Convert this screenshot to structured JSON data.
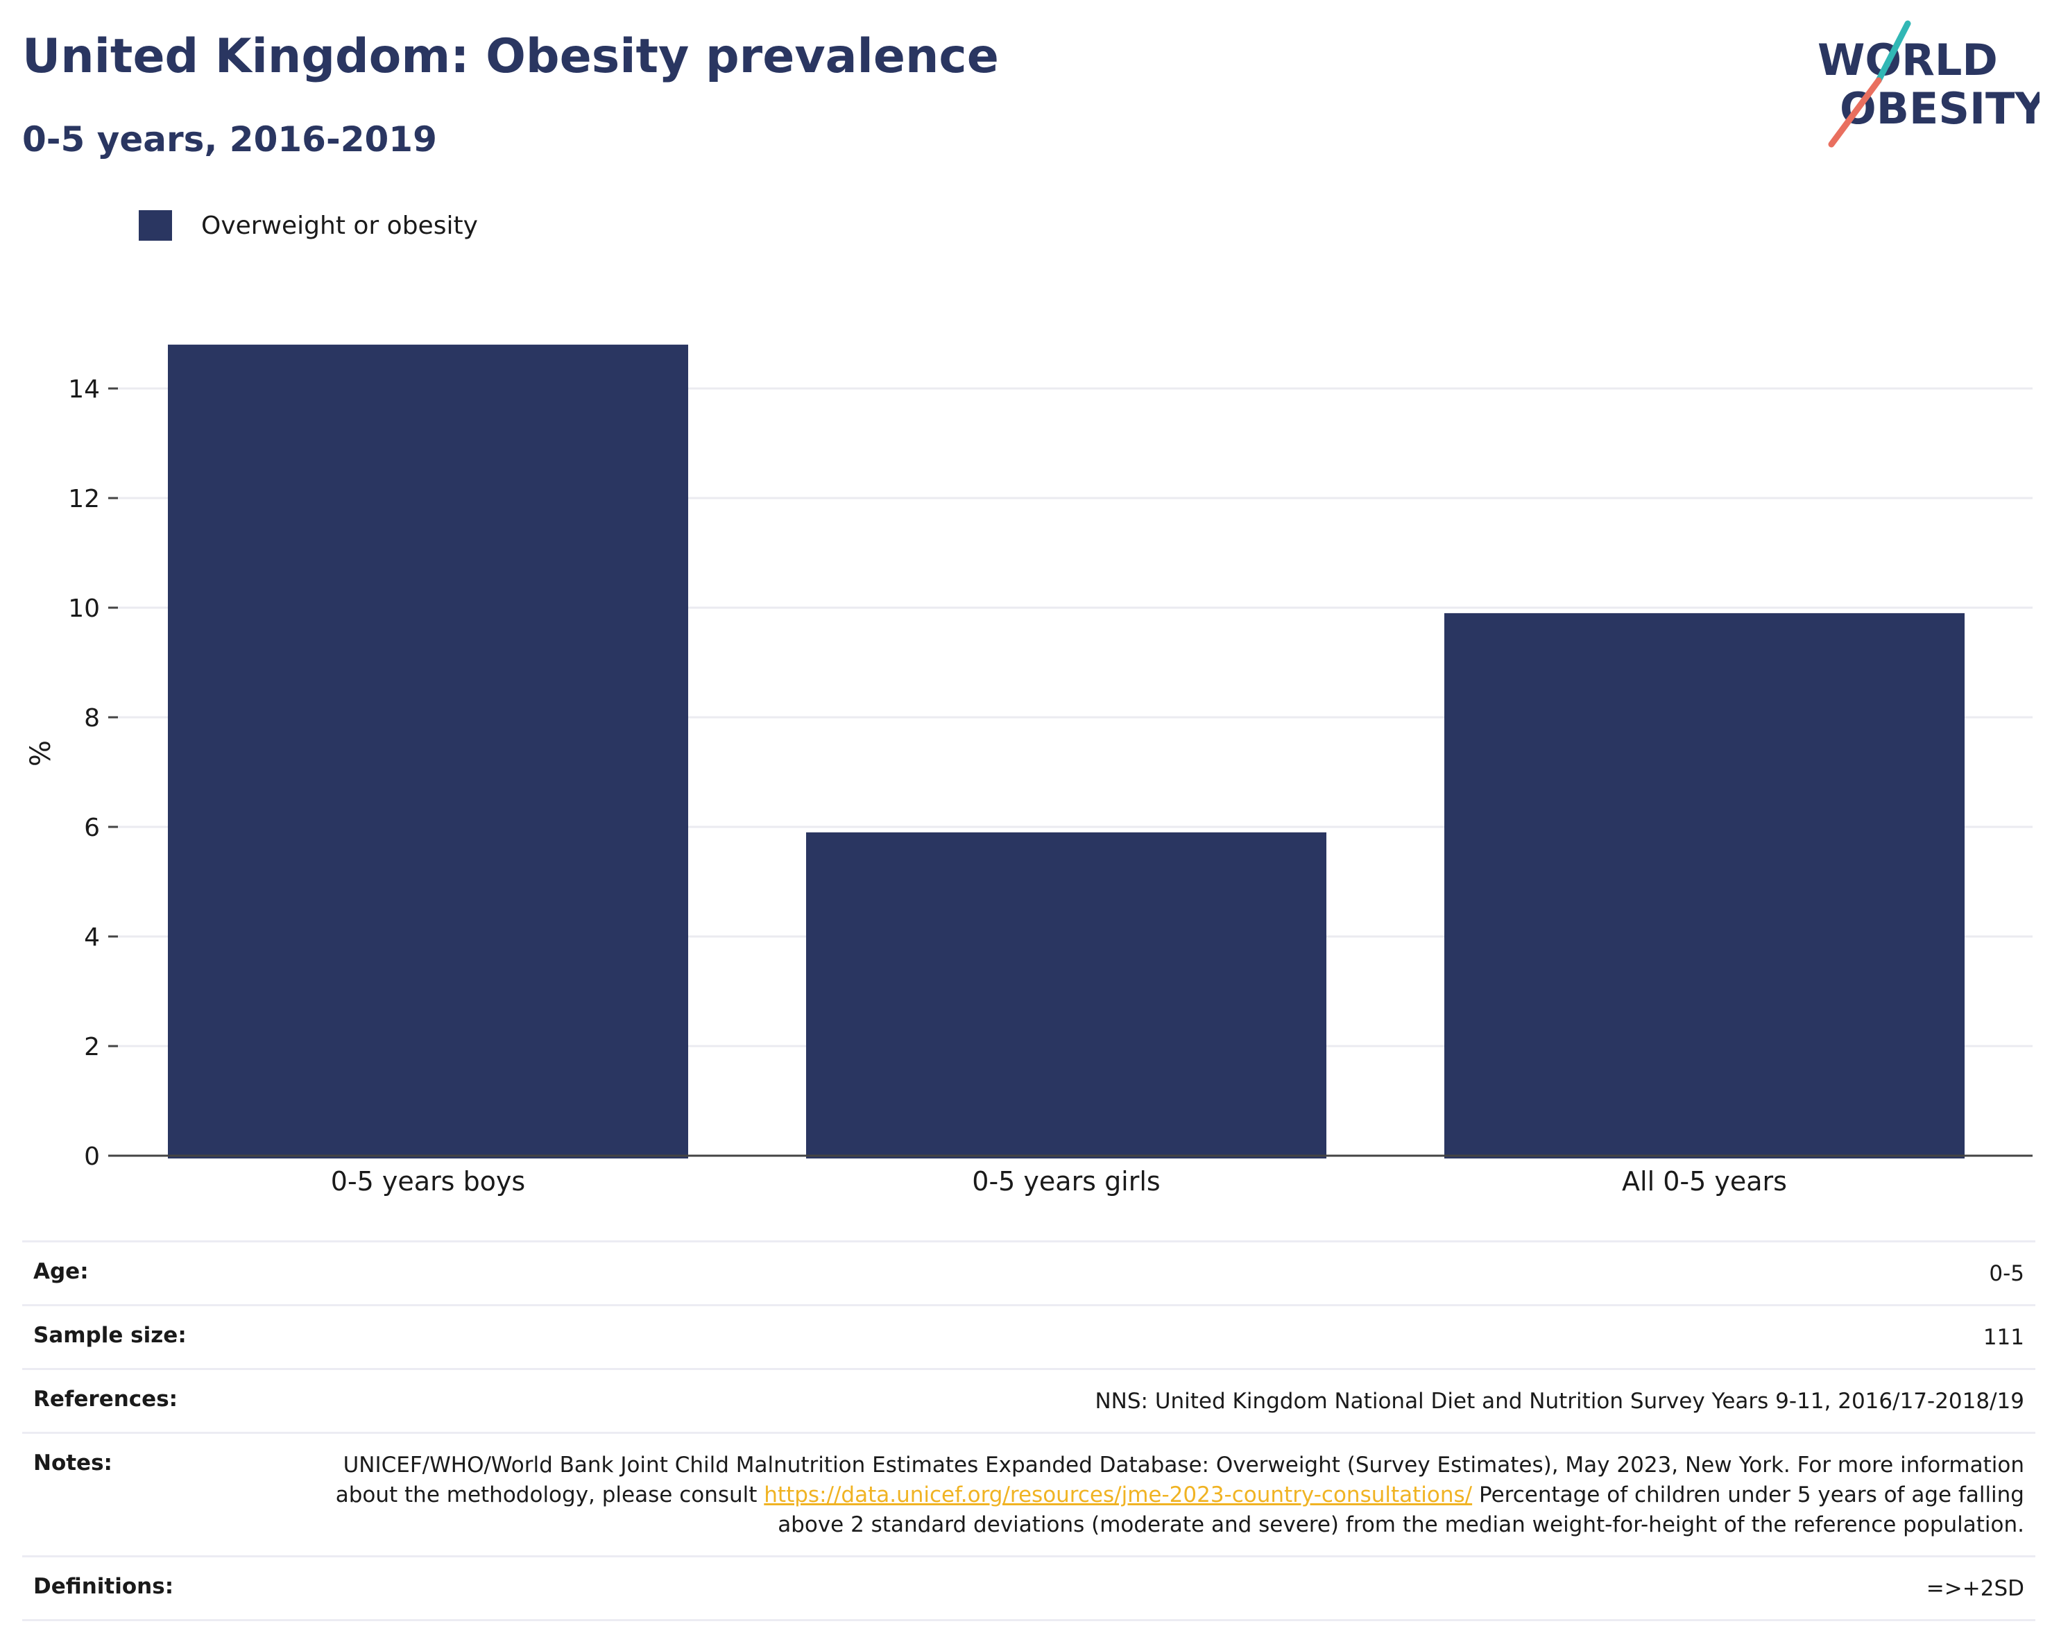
{
  "header": {
    "title": "United Kingdom: Obesity prevalence",
    "subtitle": "0-5 years, 2016-2019"
  },
  "logo": {
    "line1": "WORLD",
    "line2": "OBESITY",
    "text_color": "#2a3661",
    "slash_top_color": "#31b7b5",
    "slash_bottom_color": "#e96f5f"
  },
  "legend": {
    "label": "Overweight or obesity",
    "color": "#2a3661"
  },
  "chart_data": {
    "type": "bar",
    "title": "United Kingdom: Obesity prevalence",
    "subtitle": "0-5 years, 2016-2019",
    "categories": [
      "0-5 years boys",
      "0-5 years girls",
      "All 0-5 years"
    ],
    "series": [
      {
        "name": "Overweight or obesity",
        "values": [
          14.8,
          5.9,
          9.9
        ],
        "color": "#2a3661"
      }
    ],
    "xlabel": "",
    "ylabel": "%",
    "ylim": [
      0,
      15.5
    ],
    "yticks": [
      0,
      2,
      4,
      6,
      8,
      10,
      12,
      14
    ],
    "grid": true,
    "legend_position": "top-left"
  },
  "info": {
    "rows": [
      {
        "label": "Age:",
        "value": "0-5"
      },
      {
        "label": "Sample size:",
        "value": "111"
      },
      {
        "label": "References:",
        "value": "NNS: United Kingdom National Diet and Nutrition Survey Years 9-11, 2016/17-2018/19"
      },
      {
        "label": "Definitions:",
        "value": "=>+2SD"
      }
    ],
    "notes": {
      "label": "Notes:",
      "text_before": "UNICEF/WHO/World Bank Joint Child Malnutrition Estimates Expanded Database: Overweight (Survey Estimates), May 2023, New York. For more information about the methodology, please consult ",
      "link": "https://data.unicef.org/resources/jme-2023-country-consultations/",
      "text_after": "Percentage of children under 5 years of age falling above 2 standard deviations (moderate and severe) from the median weight-for-height of the reference population."
    }
  }
}
